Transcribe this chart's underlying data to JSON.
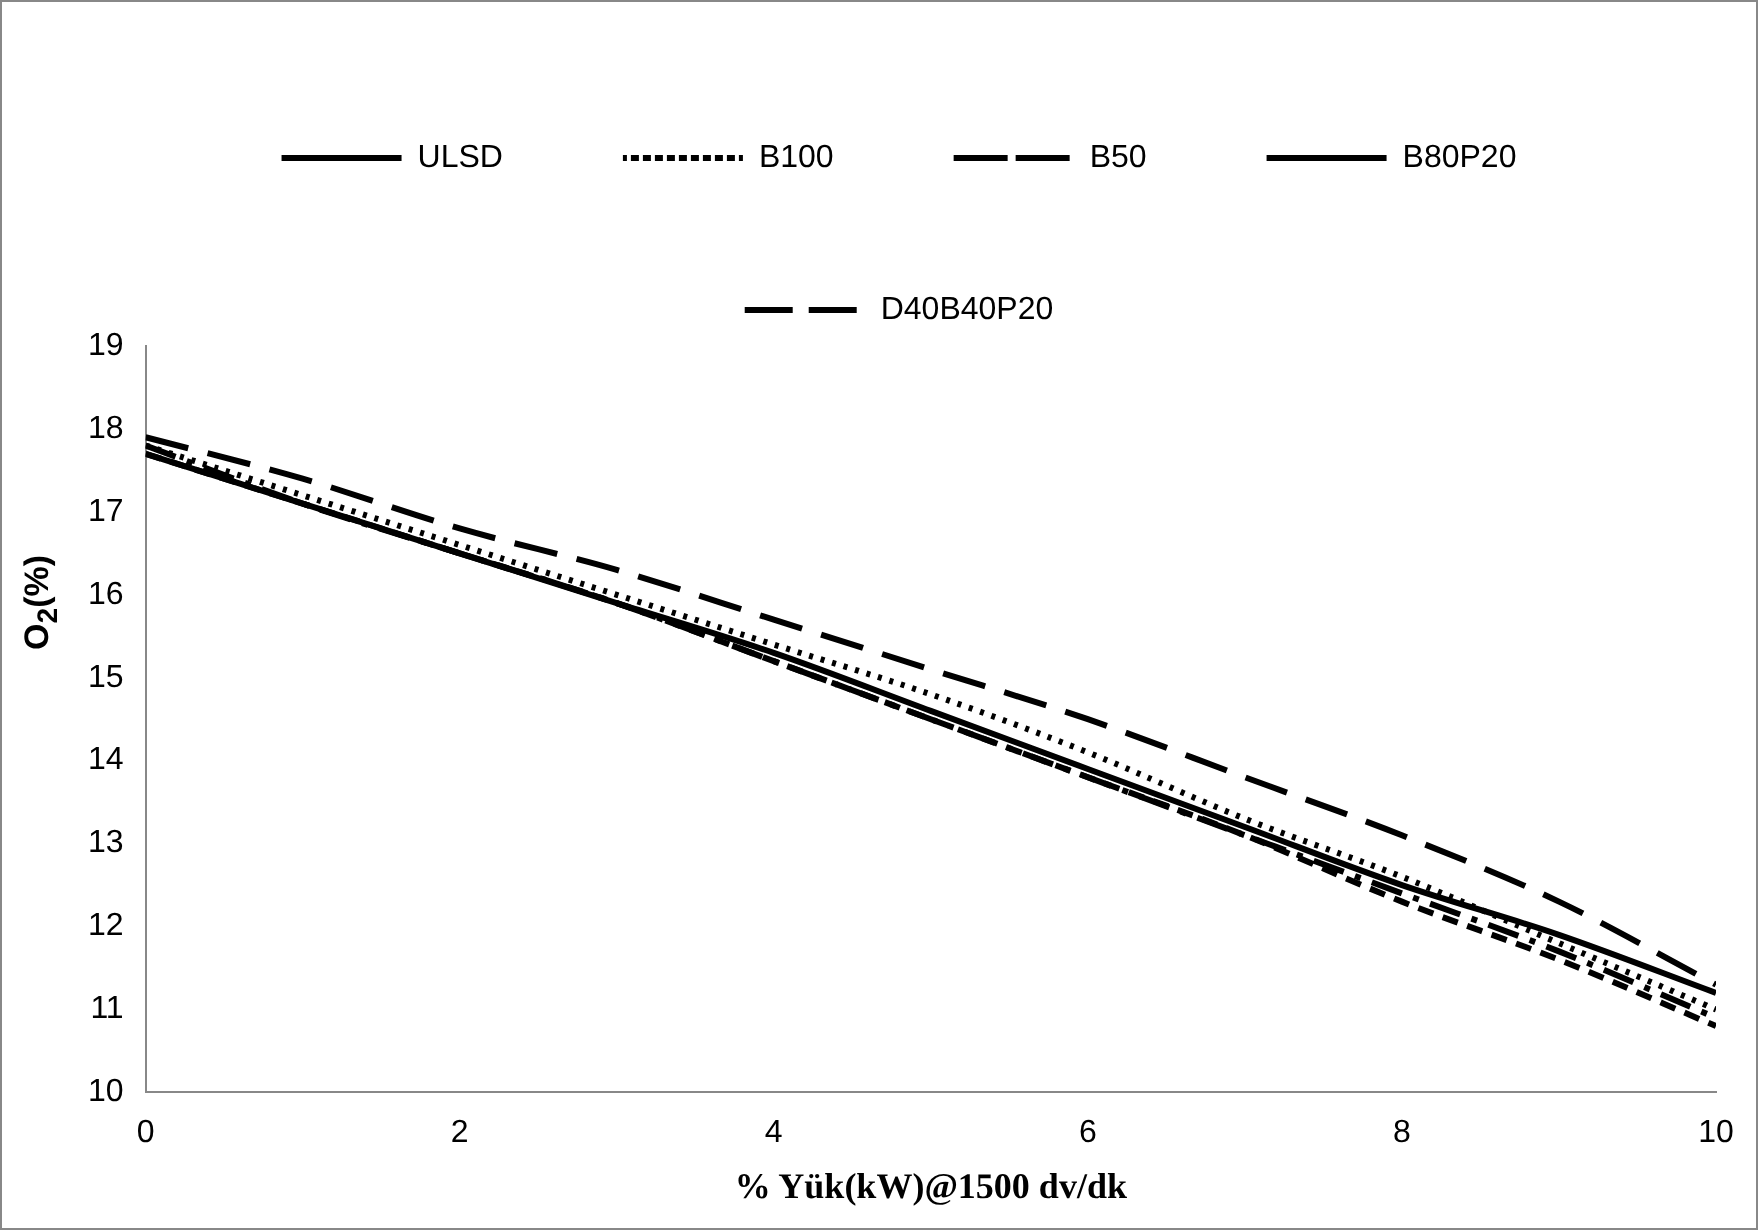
{
  "chart_data": {
    "type": "line",
    "xlabel": "% Yük(kW)@1500 dv/dk",
    "ylabel": "O$_{2}$(%)",
    "x": [
      0,
      1,
      2,
      3,
      4,
      5,
      6,
      7,
      8,
      9,
      10
    ],
    "xlim": [
      0,
      10
    ],
    "xticks": [
      0,
      2,
      4,
      6,
      8,
      10
    ],
    "ylim": [
      10,
      19
    ],
    "yticks": [
      10,
      11,
      12,
      13,
      14,
      15,
      16,
      17,
      18,
      19
    ],
    "legend": "top",
    "grid": false,
    "marker": "none",
    "series": [
      {
        "name": "ULSD",
        "color": "#000000",
        "line_style": "solid",
        "values": [
          17.7,
          17.1,
          16.5,
          15.9,
          15.3,
          14.6,
          13.9,
          13.2,
          12.5,
          11.9,
          11.2
        ]
      },
      {
        "name": "B100",
        "color": "#000000",
        "line_style": "dotted",
        "values": [
          17.8,
          17.2,
          16.6,
          16.0,
          15.4,
          14.8,
          14.1,
          13.3,
          12.6,
          11.8,
          11.0
        ]
      },
      {
        "name": "B50",
        "color": "#000000",
        "line_style": "dashdot",
        "values": [
          17.8,
          17.1,
          16.5,
          15.9,
          15.2,
          14.5,
          13.8,
          13.1,
          12.4,
          11.7,
          10.9
        ]
      },
      {
        "name": "B80P20",
        "color": "#000000",
        "line_style": "dashed",
        "values": [
          17.7,
          17.1,
          16.5,
          15.9,
          15.2,
          14.5,
          13.8,
          13.1,
          12.3,
          11.6,
          10.8
        ]
      },
      {
        "name": "D40B40P20",
        "color": "#000000",
        "line_style": "longdash",
        "values": [
          17.9,
          17.4,
          16.8,
          16.3,
          15.7,
          15.1,
          14.5,
          13.8,
          13.1,
          12.3,
          11.3
        ]
      }
    ]
  }
}
